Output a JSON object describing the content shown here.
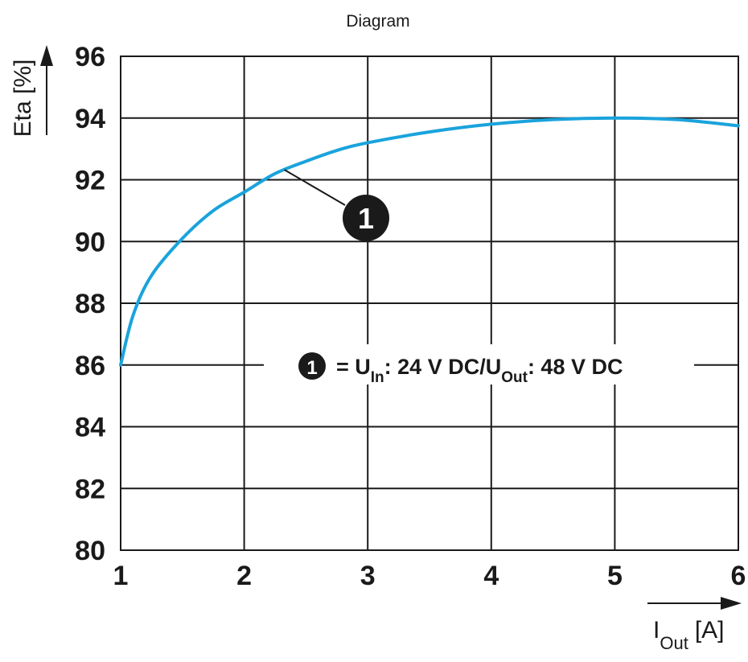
{
  "chart_data": {
    "type": "line",
    "title": "Diagram",
    "xlabel": {
      "main": "I",
      "sub": "Out",
      "unit": "[A]"
    },
    "ylabel": "Eta [%]",
    "xlim": [
      1,
      6
    ],
    "ylim": [
      80,
      96
    ],
    "x_ticks": [
      "1",
      "2",
      "3",
      "4",
      "5",
      "6"
    ],
    "y_ticks": [
      "80",
      "82",
      "84",
      "86",
      "88",
      "90",
      "92",
      "94",
      "96"
    ],
    "grid": true,
    "series": [
      {
        "color": "#1aa3dc",
        "x": [
          1.0,
          1.1,
          1.25,
          1.5,
          1.75,
          2.0,
          2.25,
          2.5,
          2.75,
          3.0,
          3.5,
          4.0,
          4.5,
          5.0,
          5.5,
          6.0
        ],
        "y": [
          86.0,
          87.6,
          88.9,
          90.1,
          91.0,
          91.6,
          92.2,
          92.6,
          92.95,
          93.2,
          93.55,
          93.8,
          93.95,
          94.0,
          93.95,
          93.75
        ]
      }
    ],
    "callout": {
      "marker": "1",
      "x": 2.3,
      "y": 92.4
    },
    "legend": {
      "marker": "1",
      "eq": "= U",
      "sub1": "In",
      "mid": ": 24 V DC/U",
      "sub2": "Out",
      "end": ": 48 V DC"
    }
  }
}
